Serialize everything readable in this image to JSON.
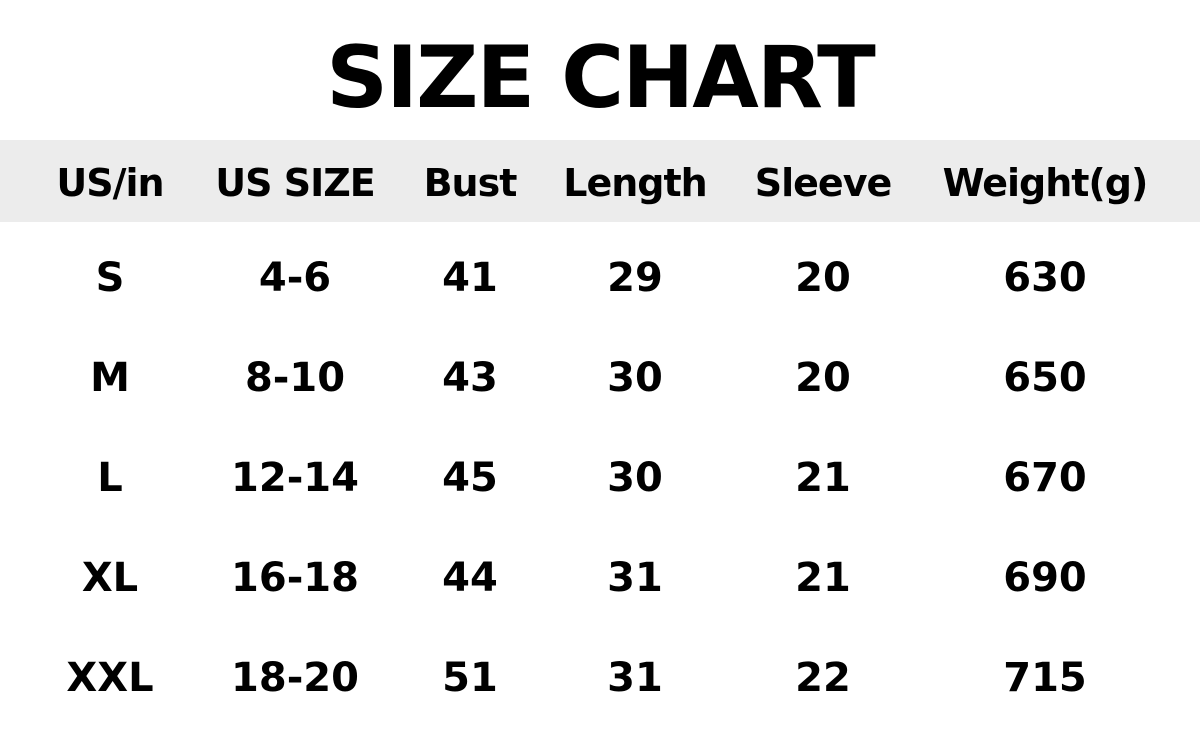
{
  "title": "SIZE CHART",
  "columns": [
    "US/in",
    "US SIZE",
    "Bust",
    "Length",
    "Sleeve",
    "Weight(g)"
  ],
  "rows": [
    [
      "S",
      "4-6",
      "41",
      "29",
      "20",
      "630"
    ],
    [
      "M",
      "8-10",
      "43",
      "30",
      "20",
      "650"
    ],
    [
      "L",
      "12-14",
      "45",
      "30",
      "21",
      "670"
    ],
    [
      "XL",
      "16-18",
      "44",
      "31",
      "21",
      "690"
    ],
    [
      "XXL",
      "18-20",
      "51",
      "31",
      "22",
      "715"
    ]
  ],
  "colors": {
    "header_background": "#ececec",
    "text": "#000000"
  }
}
